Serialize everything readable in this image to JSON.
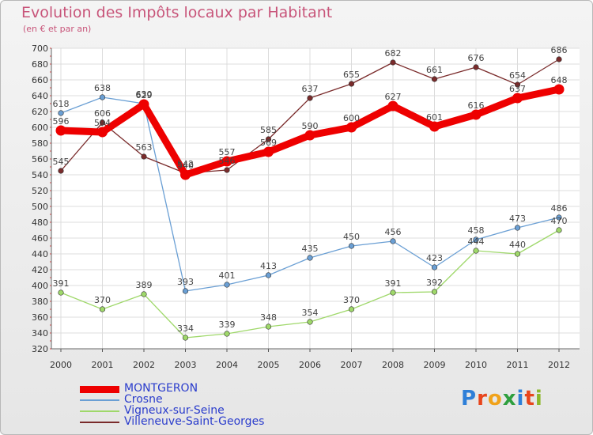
{
  "title": "Evolution des Impôts locaux par Habitant",
  "subtitle": "(en € et par an)",
  "logo": {
    "text": "Proxiti",
    "letters": [
      {
        "ch": "P",
        "color": "#2e7fd8"
      },
      {
        "ch": "r",
        "color": "#e8451c"
      },
      {
        "ch": "o",
        "color": "#f0a21a"
      },
      {
        "ch": "x",
        "color": "#2e9f3e"
      },
      {
        "ch": "i",
        "color": "#2e7fd8"
      },
      {
        "ch": "t",
        "color": "#e8451c"
      },
      {
        "ch": "i",
        "color": "#8db82c"
      }
    ]
  },
  "chart_data": {
    "type": "line",
    "x": [
      "2000",
      "2001",
      "2002",
      "2003",
      "2004",
      "2005",
      "2006",
      "2007",
      "2008",
      "2009",
      "2010",
      "2011",
      "2012"
    ],
    "ylim": [
      320,
      700
    ],
    "yticks": [
      320,
      340,
      360,
      380,
      400,
      420,
      440,
      460,
      480,
      500,
      520,
      540,
      560,
      580,
      600,
      620,
      640,
      660,
      680,
      700
    ],
    "grid": true,
    "legend_position": "bottom-left",
    "series": [
      {
        "name": "MONTGERON",
        "color": "#ee0000",
        "values": [
          596,
          594,
          629,
          540,
          557,
          569,
          590,
          600,
          627,
          601,
          616,
          637,
          648
        ]
      },
      {
        "name": "Crosne",
        "color": "#6a9fd4",
        "values": [
          618,
          638,
          630,
          393,
          401,
          413,
          435,
          450,
          456,
          423,
          458,
          473,
          486
        ]
      },
      {
        "name": "Vigneux-sur-Seine",
        "color": "#9fd86a",
        "values": [
          391,
          370,
          389,
          334,
          339,
          348,
          354,
          370,
          391,
          392,
          444,
          440,
          470
        ]
      },
      {
        "name": "Villeneuve-Saint-Georges",
        "color": "#7a2b2b",
        "values": [
          545,
          606,
          563,
          542,
          546,
          585,
          637,
          655,
          682,
          661,
          676,
          654,
          686
        ]
      }
    ]
  }
}
